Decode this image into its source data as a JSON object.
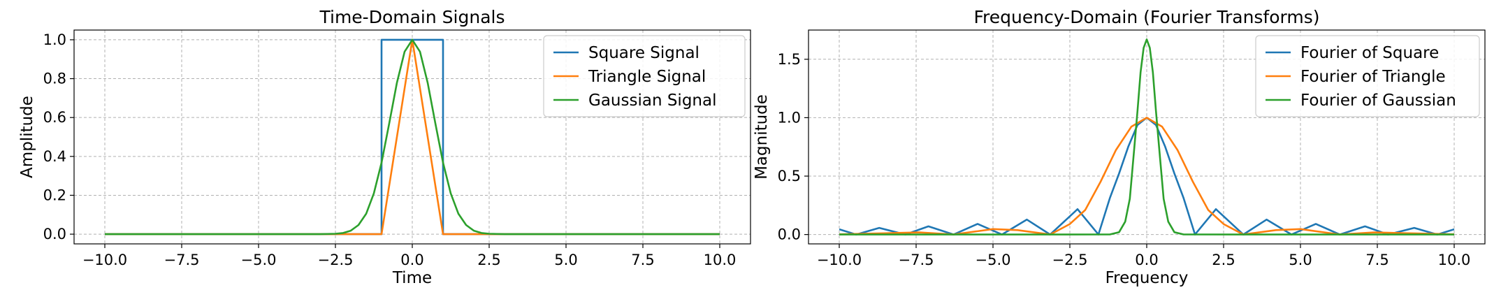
{
  "chart_data": [
    {
      "type": "line",
      "title": "Time-Domain Signals",
      "xlabel": "Time",
      "ylabel": "Amplitude",
      "xlim": [
        -11,
        11
      ],
      "ylim": [
        -0.05,
        1.05
      ],
      "xticks": [
        -10,
        -7.5,
        -5,
        -2.5,
        0,
        2.5,
        5,
        7.5,
        10
      ],
      "xtick_labels": [
        "−10.0",
        "−7.5",
        "−5.0",
        "−2.5",
        "0.0",
        "2.5",
        "5.0",
        "7.5",
        "10.0"
      ],
      "yticks": [
        0,
        0.2,
        0.4,
        0.6,
        0.8,
        1.0
      ],
      "ytick_labels": [
        "0.0",
        "0.2",
        "0.4",
        "0.6",
        "0.8",
        "1.0"
      ],
      "grid": true,
      "legend_position": "top-right",
      "series": [
        {
          "name": "Square Signal",
          "color": "#1f77b4",
          "x": [
            -10,
            -1,
            -1,
            1,
            1,
            10
          ],
          "y": [
            0,
            0,
            1,
            1,
            0,
            0
          ]
        },
        {
          "name": "Triangle Signal",
          "color": "#ff7f0e",
          "x": [
            -10,
            -1,
            0,
            1,
            10
          ],
          "y": [
            0,
            0,
            1,
            0,
            0
          ]
        },
        {
          "name": "Gaussian Signal",
          "color": "#2ca02c",
          "x": [
            -10,
            -3,
            -2.5,
            -2.25,
            -2,
            -1.75,
            -1.5,
            -1.25,
            -1,
            -0.75,
            -0.5,
            -0.25,
            0,
            0.25,
            0.5,
            0.75,
            1,
            1.25,
            1.5,
            1.75,
            2,
            2.25,
            2.5,
            3,
            10
          ],
          "y": [
            0,
            0.0001,
            0.002,
            0.006,
            0.018,
            0.047,
            0.105,
            0.21,
            0.368,
            0.57,
            0.779,
            0.939,
            1,
            0.939,
            0.779,
            0.57,
            0.368,
            0.21,
            0.105,
            0.047,
            0.018,
            0.006,
            0.002,
            0.0001,
            0
          ]
        }
      ]
    },
    {
      "type": "line",
      "title": "Frequency-Domain (Fourier Transforms)",
      "xlabel": "Frequency",
      "ylabel": "Magnitude",
      "xlim": [
        -11,
        11
      ],
      "ylim": [
        -0.08,
        1.75
      ],
      "xticks": [
        -10,
        -7.5,
        -5,
        -2.5,
        0,
        2.5,
        5,
        7.5,
        10
      ],
      "xtick_labels": [
        "−10.0",
        "−7.5",
        "−5.0",
        "−2.5",
        "0.0",
        "2.5",
        "5.0",
        "7.5",
        "10.0"
      ],
      "yticks": [
        0,
        0.5,
        1.0,
        1.5
      ],
      "ytick_labels": [
        "0.0",
        "0.5",
        "1.0",
        "1.5"
      ],
      "grid": true,
      "legend_position": "top-right",
      "series": [
        {
          "name": "Fourier of Square",
          "color": "#1f77b4",
          "x": [
            -10,
            -9.45,
            -8.7,
            -7.85,
            -7.1,
            -6.28,
            -5.5,
            -4.71,
            -3.9,
            -3.14,
            -2.25,
            -1.57,
            -1.2,
            -0.9,
            -0.6,
            -0.3,
            0,
            0.3,
            0.6,
            0.9,
            1.2,
            1.57,
            2.25,
            3.14,
            3.9,
            4.71,
            5.5,
            6.28,
            7.1,
            7.85,
            8.7,
            9.45,
            10
          ],
          "y": [
            0.045,
            0,
            0.057,
            0,
            0.07,
            0,
            0.091,
            0,
            0.128,
            0,
            0.217,
            0,
            0.311,
            0.522,
            0.752,
            0.938,
            1,
            0.938,
            0.752,
            0.522,
            0.311,
            0,
            0.217,
            0,
            0.128,
            0,
            0.091,
            0,
            0.07,
            0,
            0.057,
            0,
            0.045
          ]
        },
        {
          "name": "Fourier of Triangle",
          "color": "#ff7f0e",
          "x": [
            -10,
            -8.5,
            -7.4,
            -6.28,
            -5,
            -4.2,
            -3.14,
            -2.5,
            -2,
            -1.5,
            -1,
            -0.5,
            0,
            0.5,
            1,
            1.5,
            2,
            2.5,
            3.14,
            4.2,
            5,
            6.28,
            7.4,
            8.5,
            10
          ],
          "y": [
            0.002,
            0.011,
            0.018,
            0,
            0.047,
            0.038,
            0,
            0.09,
            0.21,
            0.452,
            0.724,
            0.923,
            1,
            0.923,
            0.724,
            0.452,
            0.21,
            0.09,
            0,
            0.038,
            0.047,
            0,
            0.018,
            0.011,
            0.002
          ]
        },
        {
          "name": "Fourier of Gaussian",
          "color": "#2ca02c",
          "x": [
            -10,
            -1.2,
            -0.9,
            -0.7,
            -0.55,
            -0.4,
            -0.3,
            -0.2,
            -0.1,
            0,
            0.1,
            0.2,
            0.3,
            0.4,
            0.55,
            0.7,
            0.9,
            1.2,
            10
          ],
          "y": [
            0,
            0.001,
            0.02,
            0.11,
            0.306,
            0.754,
            1.058,
            1.388,
            1.598,
            1.67,
            1.598,
            1.388,
            1.058,
            0.754,
            0.306,
            0.11,
            0.02,
            0.001,
            0
          ]
        }
      ]
    }
  ]
}
